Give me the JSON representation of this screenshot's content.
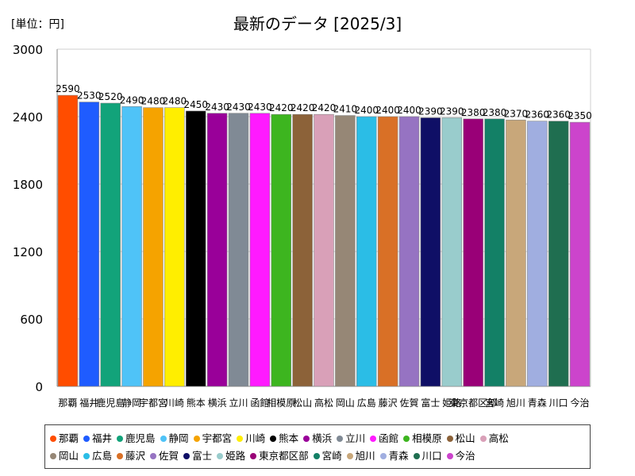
{
  "unit_label": "[単位：円]",
  "chart_data": {
    "type": "bar",
    "title": "最新のデータ [2025/3]",
    "xlabel": "",
    "ylabel": "",
    "ylim": [
      0,
      3000
    ],
    "yticks": [
      0,
      600,
      1200,
      1800,
      2400,
      3000
    ],
    "grid": "y",
    "legend": "bottom",
    "categories": [
      "那覇",
      "福井",
      "鹿児島",
      "静岡",
      "宇都宮",
      "川崎",
      "熊本",
      "横浜",
      "立川",
      "函館",
      "相模原",
      "松山",
      "高松",
      "岡山",
      "広島",
      "藤沢",
      "佐賀",
      "富士",
      "姫路",
      "東京都区部",
      "宮崎",
      "旭川",
      "青森",
      "川口",
      "今治"
    ],
    "values": [
      2590,
      2530,
      2520,
      2490,
      2480,
      2480,
      2450,
      2430,
      2430,
      2430,
      2420,
      2420,
      2420,
      2410,
      2400,
      2400,
      2400,
      2390,
      2390,
      2380,
      2380,
      2370,
      2360,
      2360,
      2350
    ],
    "value_labels": [
      "2590",
      "2530",
      "2520",
      "2490",
      "2480",
      "2480",
      "2450",
      "2430",
      "2430",
      "2430",
      "2420",
      "2420",
      "2420",
      "2410",
      "2400",
      "2400",
      "2400",
      "2390",
      "2390",
      "2380",
      "2380",
      "2370",
      "2360",
      "2360",
      "2350"
    ],
    "colors": [
      "#ff4d00",
      "#1f5cff",
      "#12a37a",
      "#4fc3f7",
      "#f5a300",
      "#ffee00",
      "#000000",
      "#990099",
      "#808a95",
      "#ff1aff",
      "#3db51f",
      "#8c6239",
      "#d9a0b8",
      "#968776",
      "#2bbde6",
      "#d97026",
      "#9673c2",
      "#0f0f66",
      "#99cccc",
      "#990077",
      "#138066",
      "#c8a77a",
      "#a0aee0",
      "#1f6e50",
      "#cc44cc"
    ]
  },
  "legend_rows": [
    [
      0,
      1,
      2,
      3,
      4,
      5,
      6,
      7,
      8,
      9,
      10,
      11,
      12
    ],
    [
      13,
      14,
      15,
      16,
      17,
      18,
      19,
      20,
      21,
      22,
      23,
      24
    ]
  ]
}
